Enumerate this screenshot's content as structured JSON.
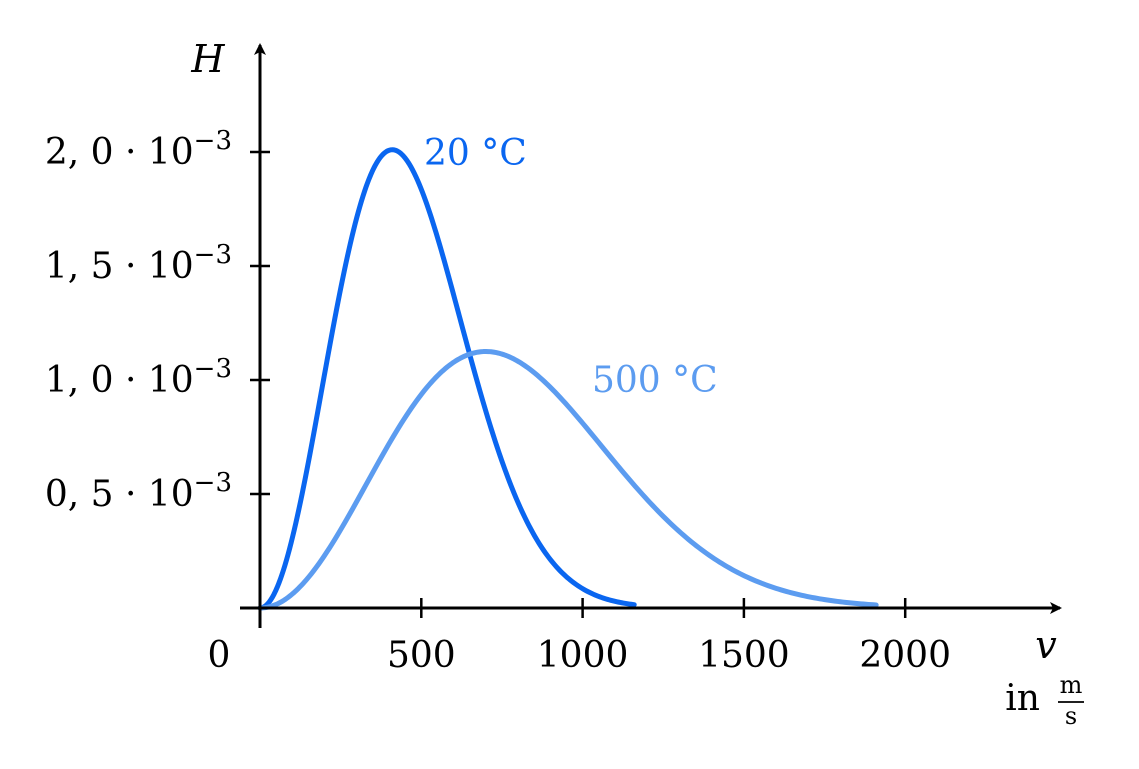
{
  "chart_data": {
    "type": "line",
    "title": "",
    "ylabel": "H",
    "xlabel": "v",
    "xunit": {
      "prefix": "in",
      "numerator": "m",
      "denominator": "s"
    },
    "origin_label": "0",
    "xlim": [
      0,
      2400
    ],
    "ylim": [
      0,
      0.00235
    ],
    "x_ticks": [
      {
        "value": 500,
        "label": "500"
      },
      {
        "value": 1000,
        "label": "1000"
      },
      {
        "value": 1500,
        "label": "1500"
      },
      {
        "value": 2000,
        "label": "2000"
      }
    ],
    "y_ticks": [
      {
        "value": 0.0005,
        "label_mantissa": "0, 5 · 10",
        "label_exp": "−3"
      },
      {
        "value": 0.001,
        "label_mantissa": "1, 0 · 10",
        "label_exp": "−3"
      },
      {
        "value": 0.0015,
        "label_mantissa": "1, 5 · 10",
        "label_exp": "−3"
      },
      {
        "value": 0.002,
        "label_mantissa": "2, 0 · 10",
        "label_exp": "−3"
      }
    ],
    "grid": false,
    "series": [
      {
        "name": "20 °C",
        "color": "#0a66f0",
        "model": {
          "kind": "maxwell-boltzmann",
          "peak_x": 410,
          "peak_y": 0.00201,
          "x_end": 1160
        }
      },
      {
        "name": "500 °C",
        "color": "#5c9cf0",
        "model": {
          "kind": "maxwell-boltzmann",
          "peak_x": 700,
          "peak_y": 0.001125,
          "x_end": 1910
        }
      }
    ]
  }
}
